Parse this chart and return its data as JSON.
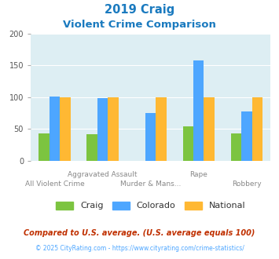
{
  "title_line1": "2019 Craig",
  "title_line2": "Violent Crime Comparison",
  "categories": [
    "All Violent Crime",
    "Aggravated Assault",
    "Murder & Mans...",
    "Rape",
    "Robbery"
  ],
  "craig": [
    43,
    41,
    0,
    54,
    43
  ],
  "colorado": [
    101,
    99,
    75,
    158,
    78
  ],
  "national": [
    100,
    100,
    100,
    100,
    100
  ],
  "craig_color": "#7cc440",
  "colorado_color": "#4da6ff",
  "national_color": "#ffb833",
  "bg_color": "#ddeef3",
  "ylim": [
    0,
    200
  ],
  "yticks": [
    0,
    50,
    100,
    150,
    200
  ],
  "footnote1": "Compared to U.S. average. (U.S. average equals 100)",
  "footnote2": "© 2025 CityRating.com - https://www.cityrating.com/crime-statistics/",
  "title_color": "#1a7abf",
  "footnote1_color": "#c03000",
  "footnote2_color": "#4da6ff",
  "tick_color": "#aaaaaa",
  "label_color": "#888888"
}
